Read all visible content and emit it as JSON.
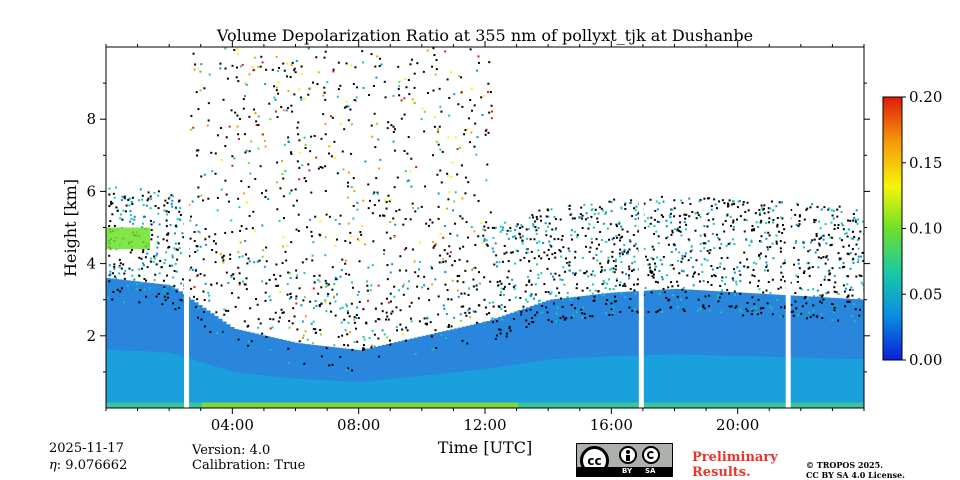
{
  "chart_data": {
    "type": "heatmap",
    "title": "Volume Depolarization Ratio at 355 nm of pollyxt_tjk at Dushanbe",
    "xlabel": "Time [UTC]",
    "ylabel": "Height [km]",
    "xlim_hours": [
      0,
      24
    ],
    "ylim_km": [
      0,
      10
    ],
    "xticks": [
      {
        "value": 4,
        "label": "04:00"
      },
      {
        "value": 8,
        "label": "08:00"
      },
      {
        "value": 12,
        "label": "12:00"
      },
      {
        "value": 16,
        "label": "16:00"
      },
      {
        "value": 20,
        "label": "20:00"
      }
    ],
    "yticks": [
      {
        "value": 2,
        "label": "2"
      },
      {
        "value": 4,
        "label": "4"
      },
      {
        "value": 6,
        "label": "6"
      },
      {
        "value": 8,
        "label": "8"
      }
    ],
    "colorbar": {
      "range": [
        0.0,
        0.2
      ],
      "ticks": [
        {
          "value": 0.0,
          "label": "0.00"
        },
        {
          "value": 0.05,
          "label": "0.05"
        },
        {
          "value": 0.1,
          "label": "0.10"
        },
        {
          "value": 0.15,
          "label": "0.15"
        },
        {
          "value": 0.2,
          "label": "0.20"
        }
      ],
      "colormap": [
        "#0a1fd8",
        "#0a8fe0",
        "#19c8a8",
        "#6fe02a",
        "#f5f50a",
        "#f59a0a",
        "#e01a0a"
      ]
    },
    "data_gaps_hours": [
      2.55,
      16.95,
      21.6
    ],
    "boundary_layer_top_km": [
      3.6,
      3.4,
      2.2,
      1.8,
      1.6,
      2.0,
      2.4,
      3.0,
      3.2,
      3.3,
      3.2,
      3.1,
      3.0
    ],
    "boundary_layer_top_times": [
      0,
      2,
      4,
      6,
      8,
      10,
      12,
      14,
      16,
      18,
      20,
      22,
      24
    ],
    "elevated_layer": {
      "time_start_h": 0,
      "time_end_h": 1.4,
      "bottom_km": 4.4,
      "top_km": 5.0,
      "value": 0.09
    },
    "noise_region": {
      "time_start_h": 2.6,
      "time_end_h": 12.2,
      "value_max": 0.2
    }
  },
  "info": {
    "date": "2025-11-17",
    "eta_label": "η",
    "eta_value": ": 9.076662",
    "version": "Version: 4.0",
    "calibration": "Calibration: True"
  },
  "license": {
    "badge_left": "BY",
    "badge_right": "SA",
    "cc_glyph": "cc",
    "preliminary_line1": "Preliminary",
    "preliminary_line2": "Results.",
    "copyright_line1": "© TROPOS 2025.",
    "copyright_line2": "CC BY SA 4.0 License.",
    "prelim_color": "#e8362f"
  }
}
